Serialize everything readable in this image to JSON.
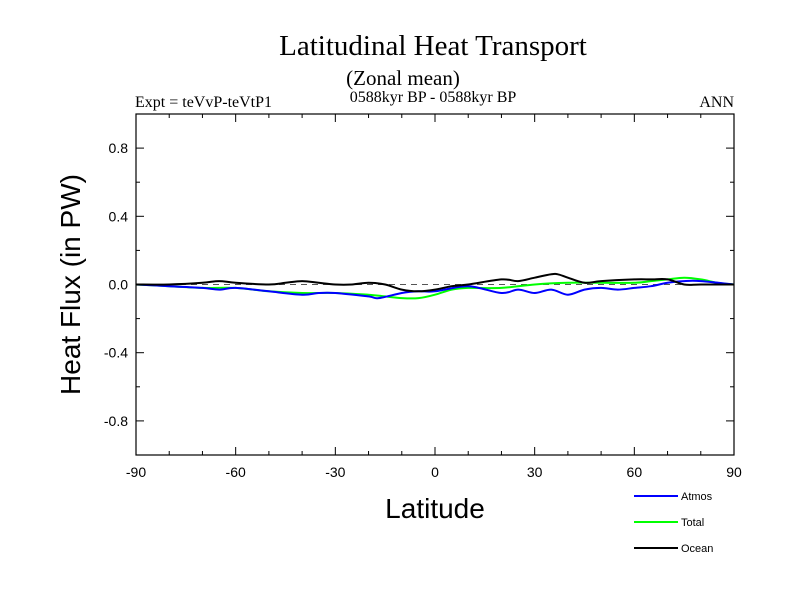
{
  "chart_data": {
    "type": "line",
    "title": "Latitudinal Heat Transport",
    "subtitle": "(Zonal mean)",
    "annotations": {
      "left": "Expt = teVvP-teVtP1",
      "center": "0588kyr BP - 0588kyr BP",
      "right": "ANN"
    },
    "xlabel": "Latitude",
    "ylabel": "Heat Flux (in PW)",
    "xlim": [
      -90,
      90
    ],
    "ylim": [
      -1.0,
      1.0
    ],
    "xticks": [
      -90,
      -60,
      -30,
      0,
      30,
      60,
      90
    ],
    "xtick_labels": [
      "-90",
      "-60",
      "-30",
      "0",
      "30",
      "60",
      "90"
    ],
    "yticks": [
      0.8,
      0.4,
      0.0,
      -0.4,
      -0.8
    ],
    "ytick_labels": [
      "0.8",
      "0.4",
      "0.0",
      "-0.4",
      "-0.8"
    ],
    "zero_line": "dashed",
    "grid": false,
    "legend_position": "bottom-right, below plot",
    "series": [
      {
        "name": "Atmos",
        "color": "#0000ff",
        "x": [
          -90,
          -80,
          -70,
          -65,
          -60,
          -50,
          -40,
          -35,
          -30,
          -20,
          -17,
          -10,
          -5,
          0,
          10,
          20,
          25,
          30,
          35,
          40,
          45,
          50,
          55,
          60,
          65,
          70,
          75,
          80,
          90
        ],
        "y": [
          0.0,
          -0.01,
          -0.02,
          -0.03,
          -0.02,
          -0.04,
          -0.06,
          -0.05,
          -0.05,
          -0.07,
          -0.08,
          -0.05,
          -0.04,
          -0.04,
          -0.01,
          -0.05,
          -0.03,
          -0.05,
          -0.03,
          -0.06,
          -0.03,
          -0.02,
          -0.03,
          -0.02,
          -0.01,
          0.01,
          0.02,
          0.02,
          0.0
        ]
      },
      {
        "name": "Total",
        "color": "#00ff00",
        "x": [
          -90,
          -80,
          -70,
          -60,
          -50,
          -40,
          -30,
          -20,
          -15,
          -10,
          -5,
          0,
          5,
          10,
          20,
          30,
          40,
          50,
          60,
          65,
          70,
          75,
          80,
          85,
          90
        ],
        "y": [
          0.0,
          -0.01,
          -0.02,
          -0.02,
          -0.04,
          -0.05,
          -0.05,
          -0.06,
          -0.07,
          -0.08,
          -0.08,
          -0.06,
          -0.03,
          -0.02,
          -0.02,
          0.0,
          0.01,
          0.01,
          0.01,
          0.02,
          0.03,
          0.04,
          0.03,
          0.01,
          0.0
        ]
      },
      {
        "name": "Ocean",
        "color": "#000000",
        "x": [
          -90,
          -80,
          -70,
          -65,
          -60,
          -50,
          -45,
          -40,
          -35,
          -30,
          -25,
          -20,
          -15,
          -10,
          -5,
          0,
          5,
          10,
          20,
          25,
          30,
          35,
          37,
          40,
          45,
          50,
          60,
          65,
          70,
          75,
          80,
          90
        ],
        "y": [
          0.0,
          0.0,
          0.01,
          0.02,
          0.01,
          0.0,
          0.01,
          0.02,
          0.01,
          0.0,
          0.0,
          0.01,
          0.0,
          -0.03,
          -0.04,
          -0.03,
          -0.01,
          0.0,
          0.03,
          0.02,
          0.04,
          0.06,
          0.06,
          0.04,
          0.01,
          0.02,
          0.03,
          0.03,
          0.03,
          0.0,
          0.0,
          0.0
        ]
      }
    ]
  }
}
